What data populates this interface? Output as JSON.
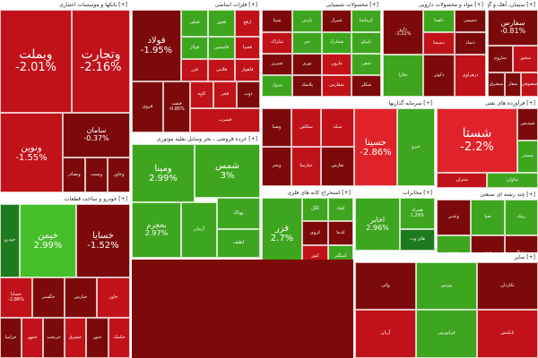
{
  "colors": {
    "dark_red": "#7d0a0a",
    "red": "#c1121a",
    "bright_red": "#e0232b",
    "dark_green": "#1e7a1e",
    "green": "#3ea61e",
    "bright_green": "#46c02a",
    "neutral": "#9a9a9a"
  },
  "sectors": [
    {
      "id": "banks",
      "title": "[+] بانکها و موسسات اعتباری",
      "tiles": [
        {
          "sym": "وبملت",
          "pct": "-2.01%",
          "tone": "red",
          "size": "big"
        },
        {
          "sym": "وتجارت",
          "pct": "-2.16%",
          "tone": "red",
          "size": "big"
        },
        {
          "sym": "ونوین",
          "pct": "-1.55%",
          "tone": "red",
          "size": "med"
        },
        {
          "sym": "سامان",
          "pct": "-0.37%",
          "tone": "dark_red",
          "size": "sm"
        },
        {
          "sym": "وبصادر",
          "pct": "",
          "tone": "dark_red",
          "size": "tiny"
        },
        {
          "sym": "وپست",
          "pct": "",
          "tone": "dark_red",
          "size": "tiny"
        },
        {
          "sym": "وخاور",
          "pct": "",
          "tone": "dark_red",
          "size": "tiny"
        }
      ]
    },
    {
      "id": "basic-metals",
      "title": "[+] فلزات اساسی",
      "tiles": [
        {
          "sym": "فولاد",
          "pct": "-1.95%",
          "tone": "dark_red",
          "size": "med"
        },
        {
          "sym": "فملی",
          "pct": "",
          "tone": "green",
          "size": "tiny"
        },
        {
          "sym": "فخوز",
          "pct": "",
          "tone": "green",
          "size": "tiny"
        },
        {
          "sym": "ارفع",
          "pct": "",
          "tone": "red",
          "size": "tiny"
        },
        {
          "sym": "فولاژ",
          "pct": "",
          "tone": "green",
          "size": "tiny"
        },
        {
          "sym": "فاسمین",
          "pct": "",
          "tone": "green",
          "size": "tiny"
        },
        {
          "sym": "فسپا",
          "pct": "",
          "tone": "red",
          "size": "tiny"
        },
        {
          "sym": "فزر",
          "pct": "",
          "tone": "red",
          "size": "tiny"
        },
        {
          "sym": "فلامی",
          "pct": "",
          "tone": "red",
          "size": "tiny"
        },
        {
          "sym": "فاهواز",
          "pct": "",
          "tone": "red",
          "size": "tiny"
        },
        {
          "sym": "فروی",
          "pct": "",
          "tone": "dark_red",
          "size": "tiny"
        },
        {
          "sym": "فنفت",
          "pct": "-0.85%",
          "tone": "dark_red",
          "size": "tiny"
        },
        {
          "sym": "کاوه",
          "pct": "",
          "tone": "red",
          "size": "tiny"
        },
        {
          "sym": "فجر",
          "pct": "",
          "tone": "red",
          "size": "tiny"
        },
        {
          "sym": "ذوب",
          "pct": "",
          "tone": "dark_red",
          "size": "tiny"
        },
        {
          "sym": "فسرب",
          "pct": "",
          "tone": "red",
          "size": "tiny"
        }
      ]
    },
    {
      "id": "chemicals",
      "title": "[+] محصولات شیمیایی",
      "tiles": [
        {
          "sym": "شپنا",
          "pct": "",
          "tone": "dark_red",
          "size": "tiny"
        },
        {
          "sym": "پارس",
          "pct": "",
          "tone": "green",
          "size": "tiny"
        },
        {
          "sym": "شیراز",
          "pct": "",
          "tone": "dark_red",
          "size": "tiny"
        },
        {
          "sym": "کرماشا",
          "pct": "",
          "tone": "green",
          "size": "tiny"
        },
        {
          "sym": "شاراک",
          "pct": "",
          "tone": "red",
          "size": "tiny"
        },
        {
          "sym": "جم",
          "pct": "",
          "tone": "green",
          "size": "tiny"
        },
        {
          "sym": "شخارک",
          "pct": "",
          "tone": "green",
          "size": "tiny"
        },
        {
          "sym": "تاپیکو",
          "pct": "",
          "tone": "green",
          "size": "tiny"
        },
        {
          "sym": "شبریز",
          "pct": "",
          "tone": "dark_red",
          "size": "tiny"
        },
        {
          "sym": "نوری",
          "pct": "",
          "tone": "dark_red",
          "size": "tiny"
        },
        {
          "sym": "مارون",
          "pct": "",
          "tone": "red",
          "size": "tiny"
        },
        {
          "sym": "شفن",
          "pct": "",
          "tone": "green",
          "size": "tiny"
        },
        {
          "sym": "پترول",
          "pct": "",
          "tone": "green",
          "size": "tiny"
        },
        {
          "sym": "پلاسک",
          "pct": "",
          "tone": "dark_red",
          "size": "tiny"
        },
        {
          "sym": "شفارس",
          "pct": "",
          "tone": "red",
          "size": "tiny"
        },
        {
          "sym": "شکلر",
          "pct": "",
          "tone": "dark_red",
          "size": "tiny"
        }
      ]
    },
    {
      "id": "pharma",
      "title": "[+] مواد و محصولات دارویی",
      "tiles": [
        {
          "sym": "دارو",
          "pct": "-1.22%",
          "tone": "dark_red",
          "size": "tiny"
        },
        {
          "sym": "دلقما",
          "pct": "",
          "tone": "green",
          "size": "tiny"
        },
        {
          "sym": "دشیمی",
          "pct": "",
          "tone": "dark_red",
          "size": "tiny"
        },
        {
          "sym": "دسبحا",
          "pct": "",
          "tone": "red",
          "size": "tiny"
        },
        {
          "sym": "دتماد",
          "pct": "",
          "tone": "dark_red",
          "size": "tiny"
        },
        {
          "sym": "دفارا",
          "pct": "",
          "tone": "green",
          "size": "tiny"
        },
        {
          "sym": "دکوثر",
          "pct": "",
          "tone": "dark_red",
          "size": "tiny"
        },
        {
          "sym": "دزهراوی",
          "pct": "",
          "tone": "red",
          "size": "tiny"
        }
      ]
    },
    {
      "id": "cement",
      "title": "[+] سیمان، آهک و گچ",
      "tiles": [
        {
          "sym": "سفارس",
          "pct": "-0.81%",
          "tone": "dark_red",
          "size": "sm"
        },
        {
          "sym": "ساروم",
          "pct": "",
          "tone": "dark_red",
          "size": "tiny"
        },
        {
          "sym": "سخوز",
          "pct": "",
          "tone": "red",
          "size": "tiny"
        },
        {
          "sym": "سشرق",
          "pct": "",
          "tone": "dark_red",
          "size": "tiny"
        },
        {
          "sym": "سفار",
          "pct": "",
          "tone": "dark_red",
          "size": "tiny"
        },
        {
          "sym": "سصوفی",
          "pct": "",
          "tone": "red",
          "size": "tiny"
        }
      ]
    },
    {
      "id": "refinery",
      "title": "[+] فرآورده های نفتی",
      "tiles": [
        {
          "sym": "شستا",
          "pct": "-2.2%",
          "tone": "bright_red",
          "size": "big"
        },
        {
          "sym": "شپدیس",
          "pct": "",
          "tone": "dark_red",
          "size": "tiny"
        },
        {
          "sym": "شبندر",
          "pct": "",
          "tone": "green",
          "size": "tiny"
        },
        {
          "sym": "شتران",
          "pct": "",
          "tone": "red",
          "size": "tiny"
        },
        {
          "sym": "شاوان",
          "pct": "",
          "tone": "green",
          "size": "tiny"
        }
      ]
    },
    {
      "id": "retail",
      "title": "[+] خرده فروشی ، بجز وسایل نقلیه موتوری",
      "tiles": [
        {
          "sym": "شمس",
          "pct": "3%",
          "tone": "green",
          "size": "med"
        },
        {
          "sym": "ومینا",
          "pct": "2.99%",
          "tone": "green",
          "size": "med"
        },
        {
          "sym": "بحچرم",
          "pct": "2.97%",
          "tone": "green",
          "size": "sm"
        },
        {
          "sym": "آرمان",
          "pct": "",
          "tone": "green",
          "size": "tiny"
        },
        {
          "sym": "بهپاک",
          "pct": "",
          "tone": "green",
          "size": "tiny"
        },
        {
          "sym": "لطیف",
          "pct": "",
          "tone": "green",
          "size": "tiny"
        }
      ]
    },
    {
      "id": "invest",
      "title": "[+] سرمایه گذاریها",
      "tiles": [
        {
          "sym": "حسینا",
          "pct": "-2.86%",
          "tone": "bright_red",
          "size": "med"
        },
        {
          "sym": "وصنا",
          "pct": "",
          "tone": "dark_red",
          "size": "tiny"
        },
        {
          "sym": "سکاش",
          "pct": "",
          "tone": "red",
          "size": "tiny"
        },
        {
          "sym": "سکه",
          "pct": "",
          "tone": "red",
          "size": "tiny"
        },
        {
          "sym": "وبحر",
          "pct": "",
          "tone": "dark_red",
          "size": "tiny"
        },
        {
          "sym": "حپارسا",
          "pct": "",
          "tone": "red",
          "size": "tiny"
        },
        {
          "sym": "خبرو",
          "pct": "",
          "tone": "green",
          "size": "tiny"
        },
        {
          "sym": "تفارس",
          "pct": "",
          "tone": "dark_red",
          "size": "tiny"
        }
      ]
    },
    {
      "id": "auto",
      "title": "[+] خودرو و ساخت قطعات",
      "tiles": [
        {
          "sym": "خیمن",
          "pct": "2.99%",
          "tone": "bright_green",
          "size": "med"
        },
        {
          "sym": "خسایا",
          "pct": "-1.52%",
          "tone": "dark_red",
          "size": "med"
        },
        {
          "sym": "خودرو",
          "pct": "",
          "tone": "dark_green",
          "size": "tiny"
        },
        {
          "sym": "خگستر",
          "pct": "",
          "tone": "dark_red",
          "size": "tiny"
        },
        {
          "sym": "خساپا",
          "pct": "-2.86%",
          "tone": "red",
          "size": "tiny"
        },
        {
          "sym": "خپارس",
          "pct": "",
          "tone": "dark_red",
          "size": "tiny"
        },
        {
          "sym": "خاور",
          "pct": "",
          "tone": "red",
          "size": "tiny"
        },
        {
          "sym": "خزامیا",
          "pct": "",
          "tone": "dark_red",
          "size": "tiny"
        },
        {
          "sym": "خمهر",
          "pct": "",
          "tone": "red",
          "size": "tiny"
        },
        {
          "sym": "خریخت",
          "pct": "",
          "tone": "dark_red",
          "size": "tiny"
        },
        {
          "sym": "خشرق",
          "pct": "",
          "tone": "red",
          "size": "tiny"
        },
        {
          "sym": "ختور",
          "pct": "",
          "tone": "dark_red",
          "size": "tiny"
        },
        {
          "sym": "خکمک",
          "pct": "",
          "tone": "red",
          "size": "tiny"
        }
      ]
    },
    {
      "id": "mining",
      "title": "[+] استخراج کانه های فلزی",
      "tiles": [
        {
          "sym": "فزر",
          "pct": "2.7%",
          "tone": "green",
          "size": "med"
        },
        {
          "sym": "کگل",
          "pct": "",
          "tone": "green",
          "size": "tiny"
        },
        {
          "sym": "کچاد",
          "pct": "",
          "tone": "green",
          "size": "tiny"
        },
        {
          "sym": "کروی",
          "pct": "",
          "tone": "dark_red",
          "size": "tiny"
        },
        {
          "sym": "کدما",
          "pct": "",
          "tone": "dark_red",
          "size": "tiny"
        },
        {
          "sym": "کنور",
          "pct": "",
          "tone": "red",
          "size": "tiny"
        },
        {
          "sym": "کمنگنز",
          "pct": "",
          "tone": "green",
          "size": "tiny"
        }
      ]
    },
    {
      "id": "telecom",
      "title": "[+] مخابرات",
      "tiles": [
        {
          "sym": "اخابر",
          "pct": "2.96%",
          "tone": "green",
          "size": "sm"
        },
        {
          "sym": "همراه",
          "pct": "1.29%",
          "tone": "green",
          "size": "tiny"
        },
        {
          "sym": "های وب",
          "pct": "",
          "tone": "dark_green",
          "size": "tiny"
        }
      ]
    },
    {
      "id": "multidisc",
      "title": "[+] چند رشته ای صنعتی",
      "tiles": [
        {
          "sym": "وغدیر",
          "pct": "",
          "tone": "dark_red",
          "size": "tiny"
        },
        {
          "sym": "صبا",
          "pct": "",
          "tone": "green",
          "size": "tiny"
        },
        {
          "sym": "رنیک",
          "pct": "",
          "tone": "green",
          "size": "tiny"
        },
        {
          "sym": "وپترو",
          "pct": "",
          "tone": "green",
          "size": "tiny"
        },
        {
          "sym": "سپ",
          "pct": "",
          "tone": "dark_red",
          "size": "tiny"
        },
        {
          "sym": "وتوکا",
          "pct": "",
          "tone": "dark_red",
          "size": "tiny"
        }
      ]
    },
    {
      "id": "misc",
      "title": "[+] سایر",
      "tiles": [
        {
          "sym": "واتی",
          "pct": "",
          "tone": "dark_red",
          "size": "tiny"
        },
        {
          "sym": "بورس",
          "pct": "",
          "tone": "green",
          "size": "tiny"
        },
        {
          "sym": "تکاردان",
          "pct": "",
          "tone": "dark_red",
          "size": "tiny"
        },
        {
          "sym": "آریان",
          "pct": "",
          "tone": "red",
          "size": "tiny"
        },
        {
          "sym": "فرابورس",
          "pct": "",
          "tone": "green",
          "size": "tiny"
        },
        {
          "sym": "تاپکیش",
          "pct": "",
          "tone": "red",
          "size": "tiny"
        }
      ]
    }
  ]
}
